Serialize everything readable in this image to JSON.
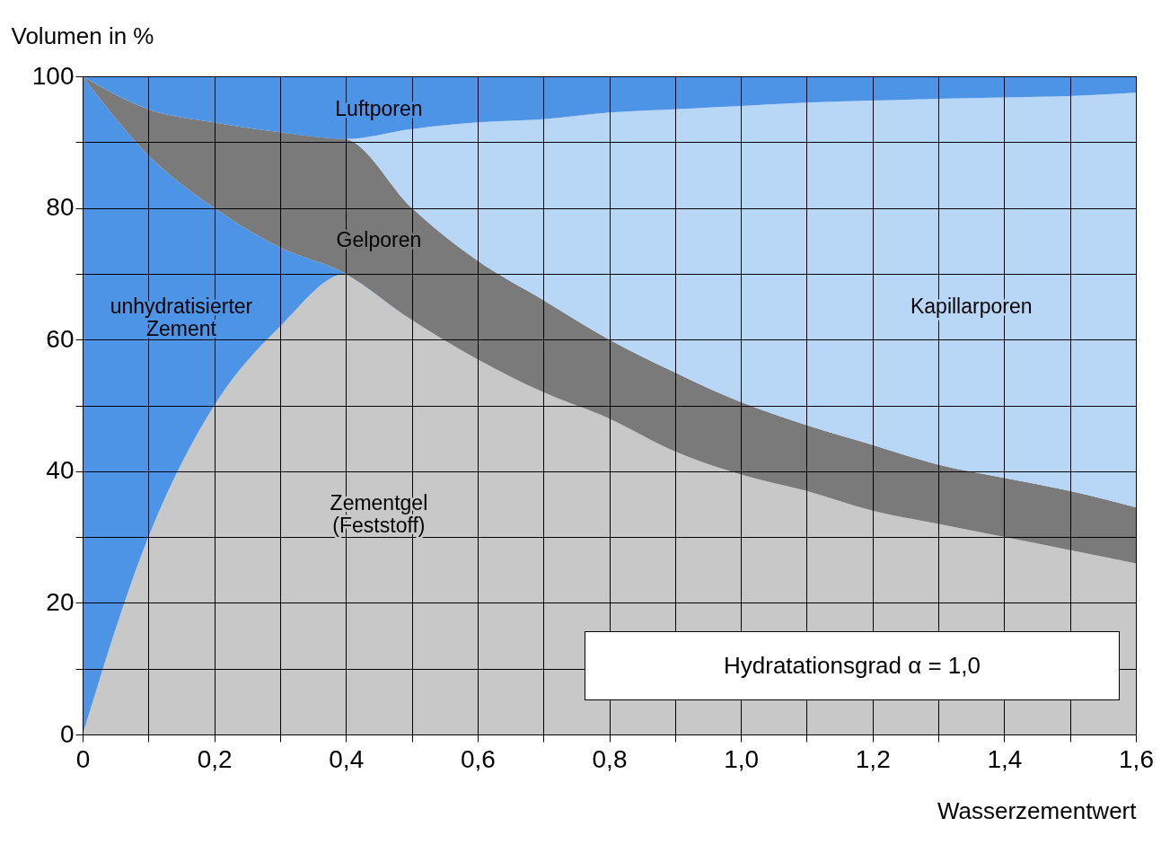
{
  "chart_data": {
    "type": "area",
    "stacked": true,
    "xlabel": "Wasserzementwert",
    "ylabel": "Volumen in %",
    "x": [
      0,
      0.1,
      0.2,
      0.3,
      0.4,
      0.5,
      0.6,
      0.7,
      0.8,
      0.9,
      1.0,
      1.1,
      1.2,
      1.3,
      1.4,
      1.5,
      1.6
    ],
    "series": [
      {
        "name": "Zementgel\n(Feststoff)",
        "color": "#c8c8c8",
        "values": [
          0,
          30,
          50,
          62,
          70,
          63,
          57,
          52,
          48,
          43,
          39.5,
          37,
          34,
          32,
          30,
          28,
          26
        ]
      },
      {
        "name": "unhydratisierter\nZement",
        "color": "#4d94e6",
        "values": [
          100,
          58,
          30,
          12,
          0,
          0,
          0,
          0,
          0,
          0,
          0,
          0,
          0,
          0,
          0,
          0,
          0
        ]
      },
      {
        "name": "Gelporen",
        "color": "#7a7a7a",
        "values": [
          0,
          7,
          13,
          17.5,
          20.5,
          17,
          15,
          14,
          12,
          12,
          11,
          10,
          10,
          9,
          9,
          9,
          8.5
        ]
      },
      {
        "name": "Kapillarporen",
        "color": "#b8d6f5",
        "values": [
          0,
          0,
          0,
          0,
          0,
          12,
          21,
          27.5,
          34.5,
          40,
          45,
          49,
          52.3,
          55.6,
          57.8,
          60,
          63
        ]
      },
      {
        "name": "Luftporen",
        "color": "#4d94e6",
        "values": [
          0,
          5,
          7,
          8.5,
          9.5,
          8,
          7,
          6.5,
          5.5,
          5,
          4.5,
          4,
          3.7,
          3.4,
          3.2,
          3,
          2.5
        ]
      }
    ],
    "xlim": [
      0,
      1.6
    ],
    "xticks": [
      {
        "value": 0,
        "label": "0"
      },
      {
        "value": 0.1,
        "label": null
      },
      {
        "value": 0.2,
        "label": "0,2"
      },
      {
        "value": 0.3,
        "label": null
      },
      {
        "value": 0.4,
        "label": "0,4"
      },
      {
        "value": 0.5,
        "label": null
      },
      {
        "value": 0.6,
        "label": "0,6"
      },
      {
        "value": 0.7,
        "label": null
      },
      {
        "value": 0.8,
        "label": "0,8"
      },
      {
        "value": 0.9,
        "label": null
      },
      {
        "value": 1.0,
        "label": "1,0"
      },
      {
        "value": 1.1,
        "label": null
      },
      {
        "value": 1.2,
        "label": "1,2"
      },
      {
        "value": 1.3,
        "label": null
      },
      {
        "value": 1.4,
        "label": "1,4"
      },
      {
        "value": 1.5,
        "label": null
      },
      {
        "value": 1.6,
        "label": "1,6"
      }
    ],
    "ylim": [
      0,
      100
    ],
    "yticks": [
      0,
      {
        "value": 10,
        "label": null
      },
      20,
      {
        "value": 30,
        "label": null
      },
      40,
      {
        "value": 50,
        "label": null
      },
      60,
      {
        "value": 70,
        "label": null
      },
      80,
      {
        "value": 90,
        "label": null
      },
      100
    ],
    "grid": true,
    "annotations": [
      "Hydratationsgrad α = 1,0"
    ]
  }
}
